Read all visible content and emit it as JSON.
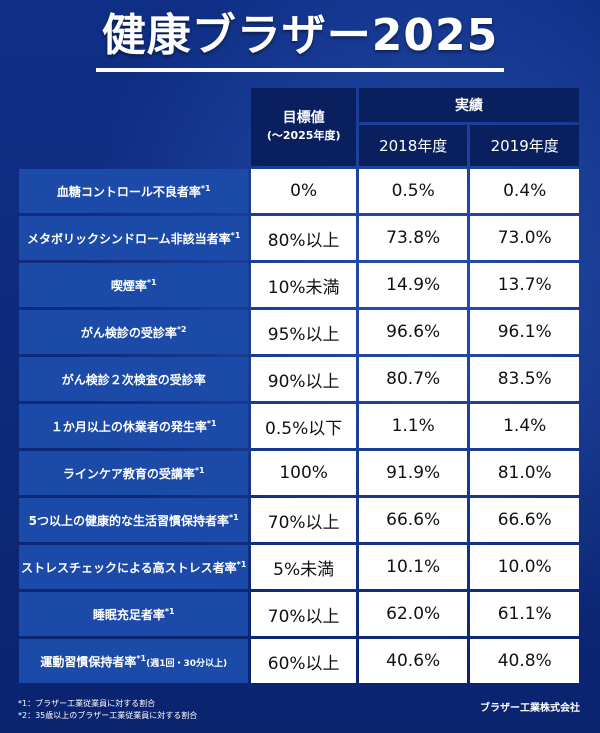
{
  "title": "健康ブラザー2025",
  "header": {
    "target_label": "目標値",
    "target_sub": "(〜2025年度)",
    "results_label": "実績",
    "year1": "2018年度",
    "year2": "2019年度"
  },
  "rows": [
    {
      "label": "血糖コントロール不良者率",
      "note": "*1",
      "extra": "",
      "target": "0%",
      "y2018": "0.5%",
      "y2019": "0.4%"
    },
    {
      "label": "メタボリックシンドローム非該当者率",
      "note": "*1",
      "extra": "",
      "target": "80%以上",
      "y2018": "73.8%",
      "y2019": "73.0%"
    },
    {
      "label": "喫煙率",
      "note": "*1",
      "extra": "",
      "target": "10%未満",
      "y2018": "14.9%",
      "y2019": "13.7%"
    },
    {
      "label": "がん検診の受診率",
      "note": "*2",
      "extra": "",
      "target": "95%以上",
      "y2018": "96.6%",
      "y2019": "96.1%"
    },
    {
      "label": "がん検診２次検査の受診率",
      "note": "",
      "extra": "",
      "target": "90%以上",
      "y2018": "80.7%",
      "y2019": "83.5%"
    },
    {
      "label": "１か月以上の休業者の発生率",
      "note": "*1",
      "extra": "",
      "target": "0.5%以下",
      "y2018": "1.1%",
      "y2019": "1.4%"
    },
    {
      "label": "ラインケア教育の受講率",
      "note": "*1",
      "extra": "",
      "target": "100%",
      "y2018": "91.9%",
      "y2019": "81.0%"
    },
    {
      "label": "5つ以上の健康的な生活習慣保持者率",
      "note": "*1",
      "extra": "",
      "target": "70%以上",
      "y2018": "66.6%",
      "y2019": "66.6%"
    },
    {
      "label": "ストレスチェックによる高ストレス者率",
      "note": "*1",
      "extra": "",
      "target": "5%未満",
      "y2018": "10.1%",
      "y2019": "10.0%"
    },
    {
      "label": "睡眠充足者率",
      "note": "*1",
      "extra": "",
      "target": "70%以上",
      "y2018": "62.0%",
      "y2019": "61.1%"
    },
    {
      "label": "運動習慣保持者率",
      "note": "*1",
      "extra": "(週1回・30分以上)",
      "target": "60%以上",
      "y2018": "40.6%",
      "y2019": "40.8%"
    }
  ],
  "footnotes": [
    "*1：ブラザー工業従業員に対する割合",
    "*2：35歳以上のブラザー工業従業員に対する割合"
  ],
  "company": "ブラザー工業株式会社"
}
